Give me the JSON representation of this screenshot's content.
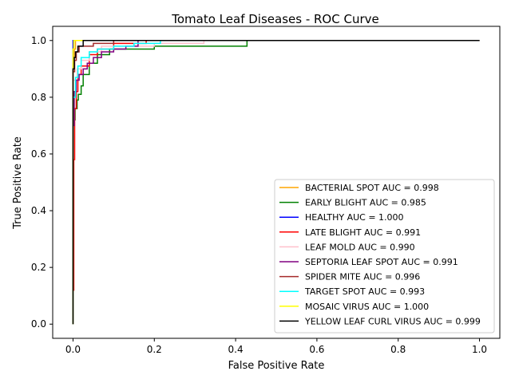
{
  "chart_data": {
    "type": "line",
    "title": "Tomato Leaf Diseases - ROC Curve",
    "xlabel": "False Positive Rate",
    "ylabel": "True Positive Rate",
    "xlim": [
      -0.05,
      1.05
    ],
    "ylim": [
      -0.05,
      1.05
    ],
    "xticks": [
      "0.0",
      "0.2",
      "0.4",
      "0.6",
      "0.8",
      "1.0"
    ],
    "yticks": [
      "0.0",
      "0.2",
      "0.4",
      "0.6",
      "0.8",
      "1.0"
    ],
    "grid": false,
    "legend_position": "lower right",
    "series": [
      {
        "name": "BACTERIAL SPOT AUC = 0.998",
        "color": "#ffa500",
        "points": [
          [
            0,
            0
          ],
          [
            0,
            0.92
          ],
          [
            0.003,
            0.92
          ],
          [
            0.003,
            0.97
          ],
          [
            0.006,
            0.97
          ],
          [
            0.006,
            1.0
          ],
          [
            1,
            1
          ]
        ]
      },
      {
        "name": "EARLY BLIGHT AUC = 0.985",
        "color": "#008000",
        "points": [
          [
            0,
            0
          ],
          [
            0,
            0.72
          ],
          [
            0.005,
            0.72
          ],
          [
            0.005,
            0.76
          ],
          [
            0.01,
            0.76
          ],
          [
            0.01,
            0.79
          ],
          [
            0.013,
            0.79
          ],
          [
            0.013,
            0.81
          ],
          [
            0.02,
            0.81
          ],
          [
            0.02,
            0.84
          ],
          [
            0.025,
            0.84
          ],
          [
            0.025,
            0.88
          ],
          [
            0.04,
            0.88
          ],
          [
            0.04,
            0.92
          ],
          [
            0.06,
            0.92
          ],
          [
            0.06,
            0.95
          ],
          [
            0.09,
            0.95
          ],
          [
            0.09,
            0.97
          ],
          [
            0.2,
            0.97
          ],
          [
            0.2,
            0.98
          ],
          [
            0.428,
            0.98
          ],
          [
            0.428,
            1.0
          ],
          [
            1,
            1
          ]
        ]
      },
      {
        "name": "HEALTHY AUC = 1.000",
        "color": "#0000ff",
        "points": [
          [
            0,
            0
          ],
          [
            0,
            1.0
          ],
          [
            1,
            1
          ]
        ]
      },
      {
        "name": "LATE BLIGHT AUC = 0.991",
        "color": "#ff0000",
        "points": [
          [
            0,
            0
          ],
          [
            0,
            0.12
          ],
          [
            0.002,
            0.12
          ],
          [
            0.002,
            0.58
          ],
          [
            0.004,
            0.58
          ],
          [
            0.004,
            0.76
          ],
          [
            0.008,
            0.76
          ],
          [
            0.008,
            0.82
          ],
          [
            0.012,
            0.82
          ],
          [
            0.012,
            0.88
          ],
          [
            0.02,
            0.88
          ],
          [
            0.02,
            0.91
          ],
          [
            0.04,
            0.91
          ],
          [
            0.04,
            0.95
          ],
          [
            0.06,
            0.95
          ],
          [
            0.06,
            0.97
          ],
          [
            0.1,
            0.97
          ],
          [
            0.1,
            0.99
          ],
          [
            0.18,
            0.99
          ],
          [
            0.18,
            1.0
          ],
          [
            1,
            1
          ]
        ]
      },
      {
        "name": "LEAF MOLD AUC = 0.990",
        "color": "#ffc0cb",
        "points": [
          [
            0,
            0
          ],
          [
            0,
            0.86
          ],
          [
            0.01,
            0.86
          ],
          [
            0.01,
            0.9
          ],
          [
            0.02,
            0.9
          ],
          [
            0.02,
            0.93
          ],
          [
            0.04,
            0.93
          ],
          [
            0.04,
            0.96
          ],
          [
            0.07,
            0.96
          ],
          [
            0.07,
            0.98
          ],
          [
            0.2,
            0.98
          ],
          [
            0.2,
            0.99
          ],
          [
            0.322,
            0.99
          ],
          [
            0.322,
            1.0
          ],
          [
            1,
            1
          ]
        ]
      },
      {
        "name": "SEPTORIA LEAF SPOT AUC = 0.991",
        "color": "#800080",
        "points": [
          [
            0,
            0
          ],
          [
            0,
            0.7
          ],
          [
            0.003,
            0.7
          ],
          [
            0.003,
            0.82
          ],
          [
            0.008,
            0.82
          ],
          [
            0.008,
            0.86
          ],
          [
            0.015,
            0.86
          ],
          [
            0.015,
            0.88
          ],
          [
            0.025,
            0.88
          ],
          [
            0.025,
            0.9
          ],
          [
            0.035,
            0.9
          ],
          [
            0.035,
            0.92
          ],
          [
            0.05,
            0.92
          ],
          [
            0.05,
            0.94
          ],
          [
            0.07,
            0.94
          ],
          [
            0.07,
            0.96
          ],
          [
            0.1,
            0.96
          ],
          [
            0.1,
            0.97
          ],
          [
            0.13,
            0.97
          ],
          [
            0.13,
            0.98
          ],
          [
            0.16,
            0.98
          ],
          [
            0.16,
            1.0
          ],
          [
            1,
            1
          ]
        ]
      },
      {
        "name": "SPIDER MITE AUC = 0.996",
        "color": "#a52a2a",
        "points": [
          [
            0,
            0
          ],
          [
            0,
            0.89
          ],
          [
            0.004,
            0.89
          ],
          [
            0.004,
            0.93
          ],
          [
            0.008,
            0.93
          ],
          [
            0.008,
            0.96
          ],
          [
            0.015,
            0.96
          ],
          [
            0.015,
            0.98
          ],
          [
            0.05,
            0.98
          ],
          [
            0.05,
            0.99
          ],
          [
            0.1,
            0.99
          ],
          [
            0.1,
            1.0
          ],
          [
            1,
            1
          ]
        ]
      },
      {
        "name": "TARGET SPOT AUC = 0.993",
        "color": "#00ffff",
        "points": [
          [
            0,
            0
          ],
          [
            0,
            0.8
          ],
          [
            0.006,
            0.8
          ],
          [
            0.006,
            0.87
          ],
          [
            0.012,
            0.87
          ],
          [
            0.012,
            0.91
          ],
          [
            0.02,
            0.91
          ],
          [
            0.02,
            0.94
          ],
          [
            0.04,
            0.94
          ],
          [
            0.04,
            0.96
          ],
          [
            0.06,
            0.96
          ],
          [
            0.06,
            0.97
          ],
          [
            0.1,
            0.97
          ],
          [
            0.1,
            0.98
          ],
          [
            0.15,
            0.98
          ],
          [
            0.15,
            0.99
          ],
          [
            0.215,
            0.99
          ],
          [
            0.215,
            1.0
          ],
          [
            1,
            1
          ]
        ]
      },
      {
        "name": "MOSAIC VIRUS AUC = 1.000",
        "color": "#ffff00",
        "points": [
          [
            0,
            0
          ],
          [
            0,
            0.97
          ],
          [
            0.002,
            0.97
          ],
          [
            0.002,
            1.0
          ],
          [
            1,
            1
          ]
        ]
      },
      {
        "name": "YELLOW LEAF CURL VIRUS AUC = 0.999",
        "color": "#000000",
        "points": [
          [
            0,
            0
          ],
          [
            0,
            0.9
          ],
          [
            0.003,
            0.9
          ],
          [
            0.003,
            0.94
          ],
          [
            0.006,
            0.94
          ],
          [
            0.006,
            0.96
          ],
          [
            0.012,
            0.96
          ],
          [
            0.012,
            0.98
          ],
          [
            0.025,
            0.98
          ],
          [
            0.025,
            1.0
          ],
          [
            1,
            1
          ]
        ]
      }
    ]
  }
}
